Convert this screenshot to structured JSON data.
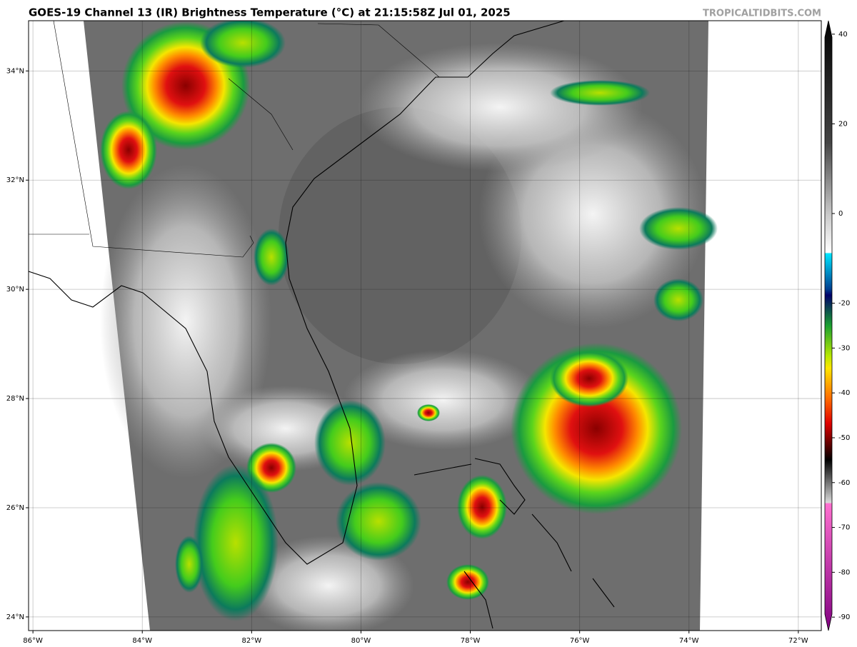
{
  "title": "GOES-19 Channel 13 (IR) Brightness Temperature (°C) at 21:15:58Z Jul 01, 2025",
  "watermark": "TROPICALTIDBITS.COM",
  "map": {
    "xlim": [
      -86.08,
      -71.58
    ],
    "ylim": [
      23.75,
      34.92
    ],
    "xticks": [
      {
        "value": -86,
        "label": "86°W"
      },
      {
        "value": -84,
        "label": "84°W"
      },
      {
        "value": -82,
        "label": "82°W"
      },
      {
        "value": -80,
        "label": "80°W"
      },
      {
        "value": -78,
        "label": "78°W"
      },
      {
        "value": -76,
        "label": "76°W"
      },
      {
        "value": -74,
        "label": "74°W"
      },
      {
        "value": -72,
        "label": "72°W"
      }
    ],
    "yticks": [
      {
        "value": 24,
        "label": "24°N"
      },
      {
        "value": 26,
        "label": "26°N"
      },
      {
        "value": 28,
        "label": "28°N"
      },
      {
        "value": 30,
        "label": "30°N"
      },
      {
        "value": 32,
        "label": "32°N"
      },
      {
        "value": 34,
        "label": "34°N"
      }
    ]
  },
  "colorbar": {
    "lim": [
      43,
      -93
    ],
    "ticks": [
      40,
      20,
      0,
      -20,
      -30,
      -40,
      -50,
      -60,
      -70,
      -80,
      -90
    ]
  }
}
